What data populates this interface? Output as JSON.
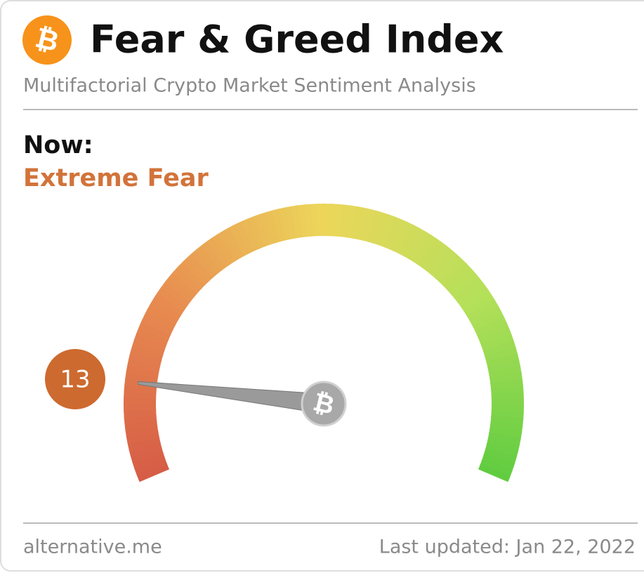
{
  "chart_data": {
    "type": "gauge",
    "logo_symbol": "₿",
    "title": "Fear & Greed Index",
    "subtitle": "Multifactorial Crypto Market Sentiment Analysis",
    "now_label": "Now:",
    "classification": "Extreme Fear",
    "value": 13,
    "ylim": [
      0,
      100
    ],
    "value_color": "#cd6a2f",
    "source": "alternative.me",
    "last_updated": "Last updated: Jan 22, 2022"
  }
}
